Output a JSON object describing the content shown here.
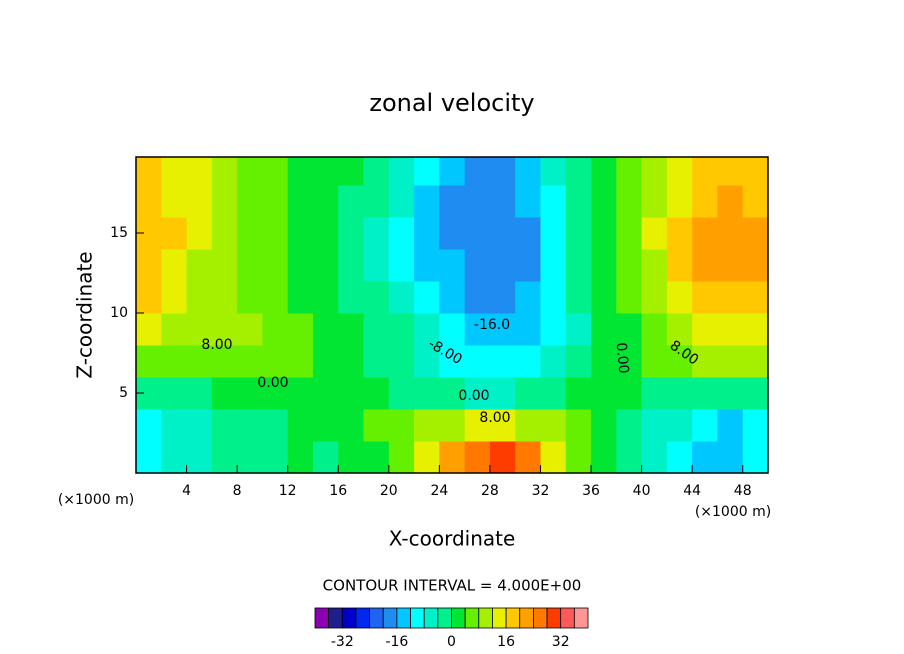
{
  "chart_data": {
    "type": "contour",
    "title": "zonal velocity",
    "xlabel": "X-coordinate",
    "ylabel": "Z-coordinate",
    "x_unit": "(×1000 m)",
    "y_unit": "(×1000 m)",
    "interval_text": "CONTOUR INTERVAL = 4.000E+00",
    "xlim": [
      0,
      50
    ],
    "ylim": [
      0,
      19.75
    ],
    "xticks": [
      4,
      8,
      12,
      16,
      20,
      24,
      28,
      32,
      36,
      40,
      44,
      48
    ],
    "yticks": [
      5,
      10,
      15
    ],
    "x": [
      1,
      3,
      5,
      7,
      9,
      11,
      13,
      15,
      17,
      19,
      21,
      23,
      25,
      27,
      29,
      31,
      33,
      35,
      37,
      39,
      41,
      43,
      45,
      47,
      49
    ],
    "z": [
      1,
      3,
      5,
      7,
      9,
      11,
      13,
      15,
      17,
      19
    ],
    "values": [
      [
        -12,
        -8,
        -6,
        -4,
        -3,
        -2,
        0,
        -2,
        1,
        2,
        6,
        12,
        20,
        24,
        28,
        24,
        14,
        6,
        1,
        -3,
        -8,
        -10,
        -14,
        -14,
        -11
      ],
      [
        -9,
        -6,
        -5,
        -3,
        -4,
        -2,
        1,
        2,
        3,
        4,
        5,
        8,
        10,
        12,
        12,
        11,
        8,
        4,
        1,
        -2,
        -5,
        -8,
        -12,
        -13,
        -10
      ],
      [
        -3,
        -2,
        -1,
        0,
        1,
        1,
        2,
        3,
        2,
        1,
        -1,
        -2,
        -4,
        -5,
        -5,
        -4,
        -2,
        0,
        1,
        0,
        -1,
        -3,
        -4,
        -4,
        -3
      ],
      [
        7,
        7,
        7,
        7,
        6,
        5,
        4,
        3,
        1,
        -1,
        -3,
        -6,
        -9,
        -10,
        -10,
        -9,
        -7,
        -3,
        0,
        2,
        5,
        7,
        9,
        9,
        9
      ],
      [
        12,
        11,
        10,
        9,
        8,
        7,
        6,
        3,
        0,
        -2,
        -4,
        -7,
        -11,
        -14,
        -14,
        -13,
        -9,
        -5,
        0,
        3,
        6,
        9,
        12,
        13,
        13
      ],
      [
        17,
        14,
        10,
        8,
        6,
        4,
        3,
        1,
        -1,
        -3,
        -7,
        -10,
        -14,
        -17,
        -18,
        -16,
        -10,
        -4,
        1,
        4,
        8,
        13,
        17,
        18,
        18
      ],
      [
        18,
        15,
        11,
        8,
        6,
        4,
        2,
        0,
        -2,
        -5,
        -9,
        -13,
        -15,
        -18,
        -20,
        -17,
        -11,
        -4,
        1,
        5,
        10,
        16,
        20,
        22,
        21
      ],
      [
        18,
        16,
        12,
        9,
        6,
        4,
        2,
        0,
        -2,
        -5,
        -9,
        -13,
        -17,
        -17,
        -18,
        -17,
        -11,
        -4,
        1,
        6,
        12,
        17,
        21,
        23,
        22
      ],
      [
        18,
        15,
        12,
        9,
        6,
        4,
        2,
        1,
        -1,
        -4,
        -8,
        -13,
        -17,
        -18,
        -17,
        -16,
        -10,
        -4,
        1,
        6,
        10,
        15,
        19,
        20,
        19
      ],
      [
        18,
        14,
        13,
        10,
        6,
        4,
        2,
        1,
        0,
        -3,
        -6,
        -10,
        -14,
        -18,
        -18,
        -14,
        -8,
        -3,
        2,
        6,
        10,
        14,
        18,
        18,
        17
      ]
    ],
    "levels": [
      -40,
      -36,
      -32,
      -28,
      -24,
      -20,
      -16,
      -12,
      -8,
      -4,
      0,
      4,
      8,
      12,
      16,
      20,
      24,
      28,
      32,
      36,
      40
    ],
    "colors": [
      "#8c00b4",
      "#1e1e8c",
      "#0000c8",
      "#0028f0",
      "#1e64f0",
      "#1e8cf0",
      "#00c8ff",
      "#00ffff",
      "#00f0c8",
      "#00f08c",
      "#00e632",
      "#64f000",
      "#a5f000",
      "#e6f000",
      "#ffc800",
      "#ffa000",
      "#ff7800",
      "#ff3c00",
      "#ff5a5a",
      "#ff9696"
    ],
    "colorbar_ticks": [
      -32,
      -16,
      0,
      16,
      32
    ],
    "annotations": [
      "8.00",
      "-16.0",
      "-8.00",
      "0.00",
      "8.00",
      "0.00",
      "0.00",
      "8.00"
    ]
  }
}
